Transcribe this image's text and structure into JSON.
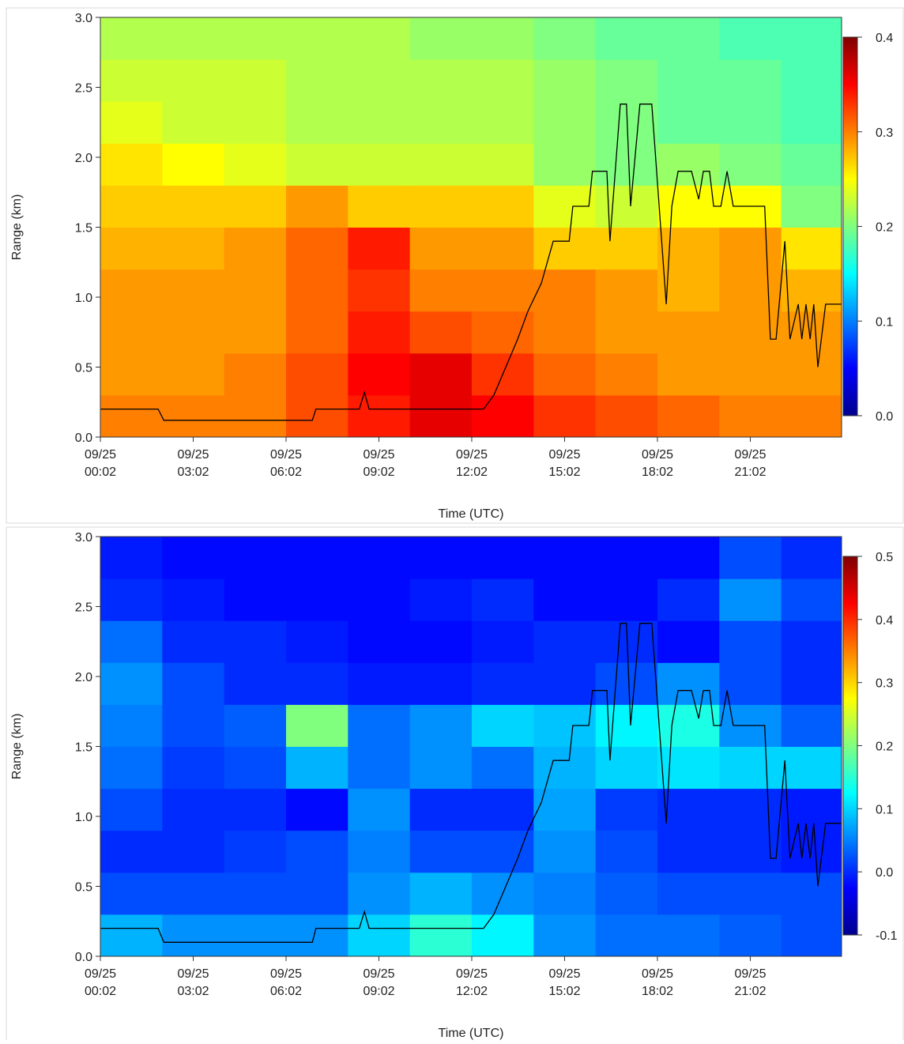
{
  "chart_data": [
    {
      "type": "heatmap",
      "ylabel": "Range (km)",
      "xlabel": "Time (UTC)",
      "colormap": "jet",
      "xlim": [
        2,
        1439
      ],
      "xticks": [
        {
          "value": 2,
          "label": [
            "09/25",
            "00:02"
          ]
        },
        {
          "value": 182,
          "label": [
            "09/25",
            "03:02"
          ]
        },
        {
          "value": 362,
          "label": [
            "09/25",
            "06:02"
          ]
        },
        {
          "value": 542,
          "label": [
            "09/25",
            "09:02"
          ]
        },
        {
          "value": 722,
          "label": [
            "09/25",
            "12:02"
          ]
        },
        {
          "value": 902,
          "label": [
            "09/25",
            "15:02"
          ]
        },
        {
          "value": 1082,
          "label": [
            "09/25",
            "18:02"
          ]
        },
        {
          "value": 1262,
          "label": [
            "09/25",
            "21:02"
          ]
        }
      ],
      "ylim": [
        0,
        3
      ],
      "yticks": [
        {
          "value": 0,
          "label": "0.0"
        },
        0.5,
        {
          "value": 1,
          "label": "1.0"
        },
        1.5,
        {
          "value": 2,
          "label": "2.0"
        },
        2.5,
        {
          "value": 3,
          "label": "3.0"
        }
      ],
      "zlim": [
        0,
        0.4
      ],
      "zticks": [
        {
          "value": 0,
          "label": "0.0"
        },
        0.1,
        0.2,
        0.3,
        0.4
      ],
      "x_bins": [
        2,
        122,
        242,
        362,
        482,
        602,
        722,
        842,
        962,
        1082,
        1202,
        1322,
        1439
      ],
      "y_bins": [
        0,
        0.3,
        0.6,
        0.9,
        1.2,
        1.5,
        1.8,
        2.1,
        2.4,
        2.7,
        3
      ],
      "z": [
        [
          0.3,
          0.3,
          0.3,
          0.32,
          0.34,
          0.36,
          0.35,
          0.33,
          0.32,
          0.31,
          0.3,
          0.3
        ],
        [
          0.29,
          0.29,
          0.3,
          0.32,
          0.35,
          0.36,
          0.33,
          0.31,
          0.3,
          0.29,
          0.29,
          0.29
        ],
        [
          0.29,
          0.29,
          0.29,
          0.31,
          0.34,
          0.32,
          0.31,
          0.3,
          0.29,
          0.29,
          0.29,
          0.29
        ],
        [
          0.29,
          0.29,
          0.29,
          0.31,
          0.33,
          0.3,
          0.3,
          0.3,
          0.29,
          0.28,
          0.29,
          0.28
        ],
        [
          0.28,
          0.28,
          0.29,
          0.31,
          0.34,
          0.29,
          0.29,
          0.27,
          0.27,
          0.28,
          0.29,
          0.26
        ],
        [
          0.27,
          0.27,
          0.27,
          0.29,
          0.27,
          0.27,
          0.27,
          0.24,
          0.23,
          0.25,
          0.25,
          0.2
        ],
        [
          0.26,
          0.25,
          0.24,
          0.23,
          0.23,
          0.23,
          0.23,
          0.21,
          0.2,
          0.21,
          0.2,
          0.19
        ],
        [
          0.24,
          0.23,
          0.23,
          0.22,
          0.22,
          0.22,
          0.22,
          0.21,
          0.2,
          0.19,
          0.19,
          0.18
        ],
        [
          0.23,
          0.23,
          0.23,
          0.22,
          0.22,
          0.22,
          0.22,
          0.21,
          0.2,
          0.19,
          0.19,
          0.18
        ],
        [
          0.22,
          0.22,
          0.22,
          0.22,
          0.22,
          0.21,
          0.21,
          0.2,
          0.19,
          0.19,
          0.18,
          0.18
        ]
      ],
      "series": [
        {
          "color": "#000000",
          "x": [
            2,
            114,
            125,
            413,
            420,
            504,
            514,
            523,
            745,
            765,
            788,
            811,
            831,
            857,
            880,
            911,
            918,
            949,
            956,
            984,
            990,
            1010,
            1022,
            1030,
            1048,
            1071,
            1099,
            1110,
            1122,
            1148,
            1162,
            1171,
            1183,
            1191,
            1205,
            1217,
            1229,
            1290,
            1301,
            1312,
            1329,
            1339,
            1355,
            1362,
            1370,
            1378,
            1385,
            1393,
            1408,
            1439
          ],
          "values": [
            0.2,
            0.2,
            0.12,
            0.12,
            0.2,
            0.2,
            0.32,
            0.2,
            0.2,
            0.3,
            0.5,
            0.7,
            0.9,
            1.1,
            1.4,
            1.4,
            1.65,
            1.65,
            1.9,
            1.9,
            1.4,
            2.38,
            2.38,
            1.65,
            2.38,
            2.38,
            0.95,
            1.65,
            1.9,
            1.9,
            1.7,
            1.9,
            1.9,
            1.65,
            1.65,
            1.9,
            1.65,
            1.65,
            0.7,
            0.7,
            1.4,
            0.7,
            0.95,
            0.7,
            0.95,
            0.7,
            0.95,
            0.5,
            0.95,
            0.95
          ]
        }
      ]
    },
    {
      "type": "heatmap",
      "ylabel": "Range (km)",
      "xlabel": "Time (UTC)",
      "colormap": "jet",
      "xlim": [
        2,
        1439
      ],
      "xticks": [
        {
          "value": 2,
          "label": [
            "09/25",
            "00:02"
          ]
        },
        {
          "value": 182,
          "label": [
            "09/25",
            "03:02"
          ]
        },
        {
          "value": 362,
          "label": [
            "09/25",
            "06:02"
          ]
        },
        {
          "value": 542,
          "label": [
            "09/25",
            "09:02"
          ]
        },
        {
          "value": 722,
          "label": [
            "09/25",
            "12:02"
          ]
        },
        {
          "value": 902,
          "label": [
            "09/25",
            "15:02"
          ]
        },
        {
          "value": 1082,
          "label": [
            "09/25",
            "18:02"
          ]
        },
        {
          "value": 1262,
          "label": [
            "09/25",
            "21:02"
          ]
        }
      ],
      "ylim": [
        0,
        3
      ],
      "yticks": [
        {
          "value": 0,
          "label": "0.0"
        },
        0.5,
        {
          "value": 1,
          "label": "1.0"
        },
        1.5,
        {
          "value": 2,
          "label": "2.0"
        },
        2.5,
        {
          "value": 3,
          "label": "3.0"
        }
      ],
      "zlim": [
        -0.1,
        0.5
      ],
      "zticks": [
        -0.1,
        {
          "value": 0,
          "label": "0.0"
        },
        0.1,
        0.2,
        0.3,
        0.4,
        0.5
      ],
      "x_bins": [
        2,
        122,
        242,
        362,
        482,
        602,
        722,
        842,
        962,
        1082,
        1202,
        1322,
        1439
      ],
      "y_bins": [
        0,
        0.3,
        0.6,
        0.9,
        1.2,
        1.5,
        1.8,
        2.1,
        2.4,
        2.7,
        3
      ],
      "z": [
        [
          0.08,
          0.06,
          0.06,
          0.06,
          0.1,
          0.15,
          0.12,
          0.06,
          0.04,
          0.04,
          0.03,
          0.02
        ],
        [
          0.02,
          0.02,
          0.02,
          0.02,
          0.06,
          0.08,
          0.06,
          0.05,
          0.03,
          0.02,
          0.02,
          0.02
        ],
        [
          0.0,
          0.0,
          0.01,
          0.02,
          0.05,
          0.02,
          0.02,
          0.06,
          0.02,
          0.0,
          0.0,
          -0.01
        ],
        [
          0.02,
          0.0,
          0.0,
          -0.02,
          0.06,
          0.0,
          0.0,
          0.07,
          0.01,
          0.0,
          0.0,
          -0.01
        ],
        [
          0.04,
          0.01,
          0.02,
          0.08,
          0.04,
          0.06,
          0.04,
          0.08,
          0.1,
          0.11,
          0.1,
          0.1
        ],
        [
          0.05,
          0.02,
          0.03,
          0.2,
          0.04,
          0.06,
          0.1,
          0.09,
          0.12,
          0.14,
          0.06,
          0.03
        ],
        [
          0.06,
          0.02,
          0.0,
          0.0,
          -0.01,
          -0.01,
          0.0,
          0.0,
          0.02,
          0.06,
          0.02,
          0.0
        ],
        [
          0.04,
          0.0,
          0.0,
          -0.01,
          -0.02,
          -0.02,
          -0.01,
          0.0,
          0.0,
          -0.02,
          0.02,
          0.0
        ],
        [
          0.0,
          -0.01,
          -0.02,
          -0.02,
          -0.02,
          -0.01,
          0.0,
          -0.02,
          -0.02,
          0.0,
          0.06,
          0.02
        ],
        [
          -0.01,
          -0.02,
          -0.02,
          -0.02,
          -0.02,
          -0.02,
          -0.02,
          -0.02,
          -0.02,
          -0.02,
          0.02,
          0.0
        ]
      ],
      "series": [
        {
          "color": "#000000",
          "x": [
            2,
            114,
            125,
            413,
            420,
            504,
            514,
            523,
            745,
            765,
            788,
            811,
            831,
            857,
            880,
            911,
            918,
            949,
            956,
            984,
            990,
            1010,
            1022,
            1030,
            1048,
            1071,
            1099,
            1110,
            1122,
            1148,
            1162,
            1171,
            1183,
            1191,
            1205,
            1217,
            1229,
            1290,
            1301,
            1312,
            1329,
            1339,
            1355,
            1362,
            1370,
            1378,
            1385,
            1393,
            1408,
            1439
          ],
          "values": [
            0.2,
            0.2,
            0.1,
            0.1,
            0.2,
            0.2,
            0.32,
            0.2,
            0.2,
            0.3,
            0.5,
            0.7,
            0.9,
            1.1,
            1.4,
            1.4,
            1.65,
            1.65,
            1.9,
            1.9,
            1.4,
            2.38,
            2.38,
            1.65,
            2.38,
            2.38,
            0.95,
            1.65,
            1.9,
            1.9,
            1.7,
            1.9,
            1.9,
            1.65,
            1.65,
            1.9,
            1.65,
            1.65,
            0.7,
            0.7,
            1.4,
            0.7,
            0.95,
            0.7,
            0.95,
            0.7,
            0.95,
            0.5,
            0.95,
            0.95
          ]
        }
      ]
    }
  ]
}
